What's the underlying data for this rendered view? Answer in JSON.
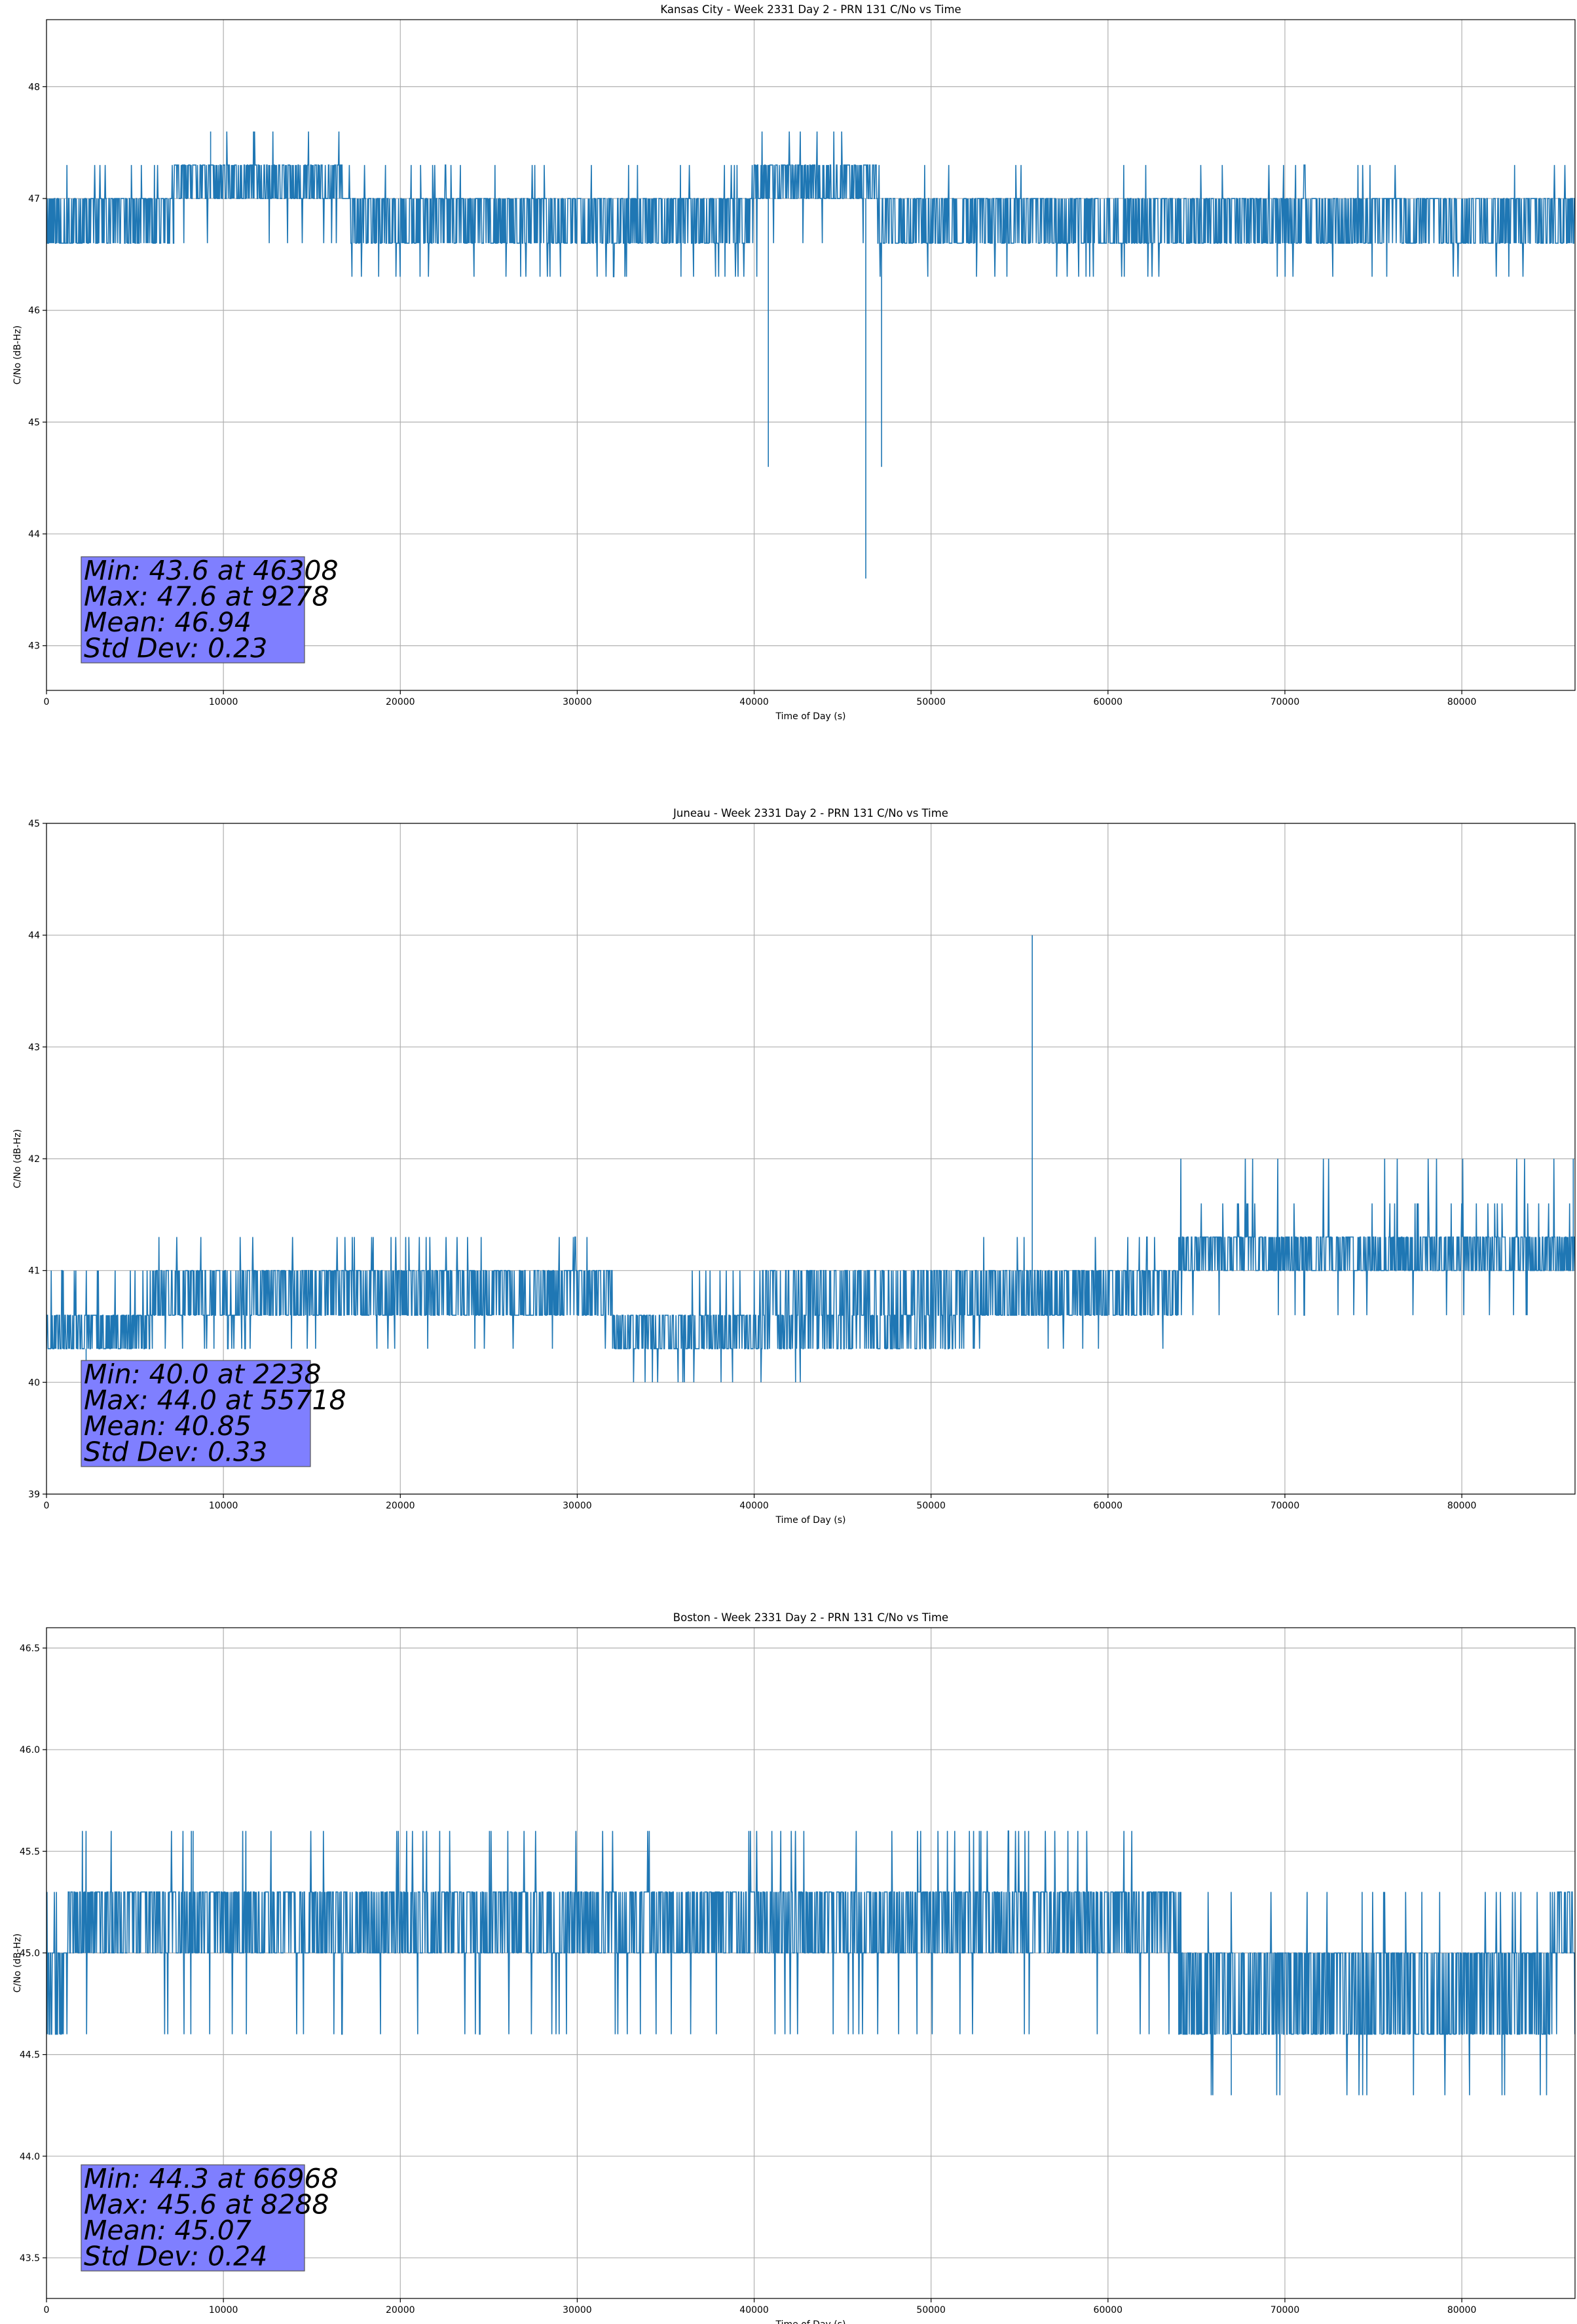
{
  "chart_data": [
    {
      "type": "line",
      "title": "Kansas City - Week 2331 Day 2 - PRN 131 C/No vs Time",
      "xlabel": "Time of Day (s)",
      "ylabel": "C/No (dB-Hz)",
      "xlim": [
        0,
        86400
      ],
      "ylim": [
        42.6,
        48.6
      ],
      "xticks": [
        0,
        10000,
        20000,
        30000,
        40000,
        50000,
        60000,
        70000,
        80000
      ],
      "yticks": [
        43,
        44,
        45,
        46,
        47,
        48
      ],
      "ytick_decimals": 0,
      "grid": true,
      "line_color": "#1f77b4",
      "seed": 11,
      "series": [
        {
          "segments": [
            {
              "x0": 0,
              "x1": 7200,
              "levels": [
                46.6,
                47.0
              ],
              "p": 0.5,
              "extra": [
                47.3
              ],
              "pe": 0.03
            },
            {
              "x0": 7200,
              "x1": 17000,
              "levels": [
                47.0,
                47.3
              ],
              "p": 0.55,
              "extra": [
                47.6,
                46.6
              ],
              "pe": 0.05
            },
            {
              "x0": 17000,
              "x1": 40000,
              "levels": [
                46.6,
                47.0
              ],
              "p": 0.5,
              "extra": [
                47.3,
                46.3
              ],
              "pe": 0.05
            },
            {
              "x0": 40000,
              "x1": 47000,
              "levels": [
                47.0,
                47.3
              ],
              "p": 0.55,
              "extra": [
                47.6,
                46.6,
                46.3
              ],
              "pe": 0.06
            },
            {
              "x0": 47000,
              "x1": 86400,
              "levels": [
                46.6,
                47.0
              ],
              "p": 0.5,
              "extra": [
                47.3,
                46.3
              ],
              "pe": 0.04
            }
          ],
          "spikes": [
            [
              40800,
              44.6
            ],
            [
              46308,
              43.6
            ],
            [
              47200,
              44.6
            ],
            [
              9278,
              47.6
            ]
          ]
        }
      ],
      "stats": [
        "Min: 43.6 at 46308",
        "Max: 47.6 at 9278",
        "Mean: 46.94",
        "Std Dev: 0.23"
      ]
    },
    {
      "type": "line",
      "title": "Juneau - Week 2331 Day 2 - PRN 131 C/No vs Time",
      "xlabel": "Time of Day (s)",
      "ylabel": "C/No (dB-Hz)",
      "xlim": [
        0,
        86400
      ],
      "ylim": [
        39,
        45
      ],
      "xticks": [
        0,
        10000,
        20000,
        30000,
        40000,
        50000,
        60000,
        70000,
        80000
      ],
      "yticks": [
        39,
        40,
        41,
        42,
        43,
        44,
        45
      ],
      "ytick_decimals": 0,
      "grid": true,
      "line_color": "#1f77b4",
      "seed": 23,
      "series": [
        {
          "segments": [
            {
              "x0": 0,
              "x1": 6000,
              "levels": [
                40.3,
                40.6
              ],
              "p": 0.5,
              "extra": [
                41.0
              ],
              "pe": 0.06
            },
            {
              "x0": 6000,
              "x1": 32000,
              "levels": [
                40.6,
                41.0
              ],
              "p": 0.5,
              "extra": [
                41.3,
                40.3
              ],
              "pe": 0.06
            },
            {
              "x0": 32000,
              "x1": 40000,
              "levels": [
                40.3,
                40.6
              ],
              "p": 0.5,
              "extra": [
                40.0,
                41.0
              ],
              "pe": 0.05
            },
            {
              "x0": 40000,
              "x1": 52000,
              "levels": [
                40.3,
                40.6,
                41.0
              ],
              "p": 0.5,
              "extra": [
                40.0
              ],
              "pe": 0.01
            },
            {
              "x0": 52000,
              "x1": 64000,
              "levels": [
                40.6,
                41.0
              ],
              "p": 0.5,
              "extra": [
                40.3,
                41.3
              ],
              "pe": 0.05
            },
            {
              "x0": 64000,
              "x1": 86400,
              "levels": [
                41.0,
                41.3
              ],
              "p": 0.5,
              "extra": [
                41.6,
                42.0,
                40.6
              ],
              "pe": 0.07
            }
          ],
          "spikes": [
            [
              55718,
              44.0
            ],
            [
              2238,
              40.0
            ],
            [
              86300,
              42.0
            ]
          ]
        }
      ],
      "stats": [
        "Min: 40.0 at 2238",
        "Max: 44.0 at 55718",
        "Mean: 40.85",
        "Std Dev: 0.33"
      ]
    },
    {
      "type": "line",
      "title": "Boston - Week 2331 Day 2 - PRN 131 C/No vs Time",
      "xlabel": "Time of Day (s)",
      "ylabel": "C/No (dB-Hz)",
      "xlim": [
        0,
        86400
      ],
      "ylim": [
        43.3,
        46.6
      ],
      "xticks": [
        0,
        10000,
        20000,
        30000,
        40000,
        50000,
        60000,
        70000,
        80000
      ],
      "yticks": [
        43.5,
        44.0,
        44.5,
        45.0,
        45.5,
        46.0,
        46.5
      ],
      "ytick_decimals": 1,
      "grid": true,
      "line_color": "#1f77b4",
      "seed": 37,
      "series": [
        {
          "segments": [
            {
              "x0": 0,
              "x1": 1200,
              "levels": [
                44.6,
                45.0
              ],
              "p": 0.5,
              "extra": [
                45.3
              ],
              "pe": 0.05
            },
            {
              "x0": 1200,
              "x1": 64000,
              "levels": [
                45.0,
                45.3
              ],
              "p": 0.5,
              "extra": [
                45.6,
                44.6
              ],
              "pe": 0.05
            },
            {
              "x0": 64000,
              "x1": 85000,
              "levels": [
                44.6,
                45.0
              ],
              "p": 0.5,
              "extra": [
                45.3,
                44.3
              ],
              "pe": 0.04
            },
            {
              "x0": 85000,
              "x1": 86400,
              "levels": [
                45.0,
                45.3
              ],
              "p": 0.5,
              "extra": [
                44.6
              ],
              "pe": 0.05
            }
          ],
          "spikes": [
            [
              66968,
              44.3
            ],
            [
              8288,
              45.6
            ]
          ]
        }
      ],
      "stats": [
        "Min: 44.3 at 66968",
        "Max: 45.6 at 8288",
        "Mean: 45.07",
        "Std Dev: 0.24"
      ]
    }
  ]
}
